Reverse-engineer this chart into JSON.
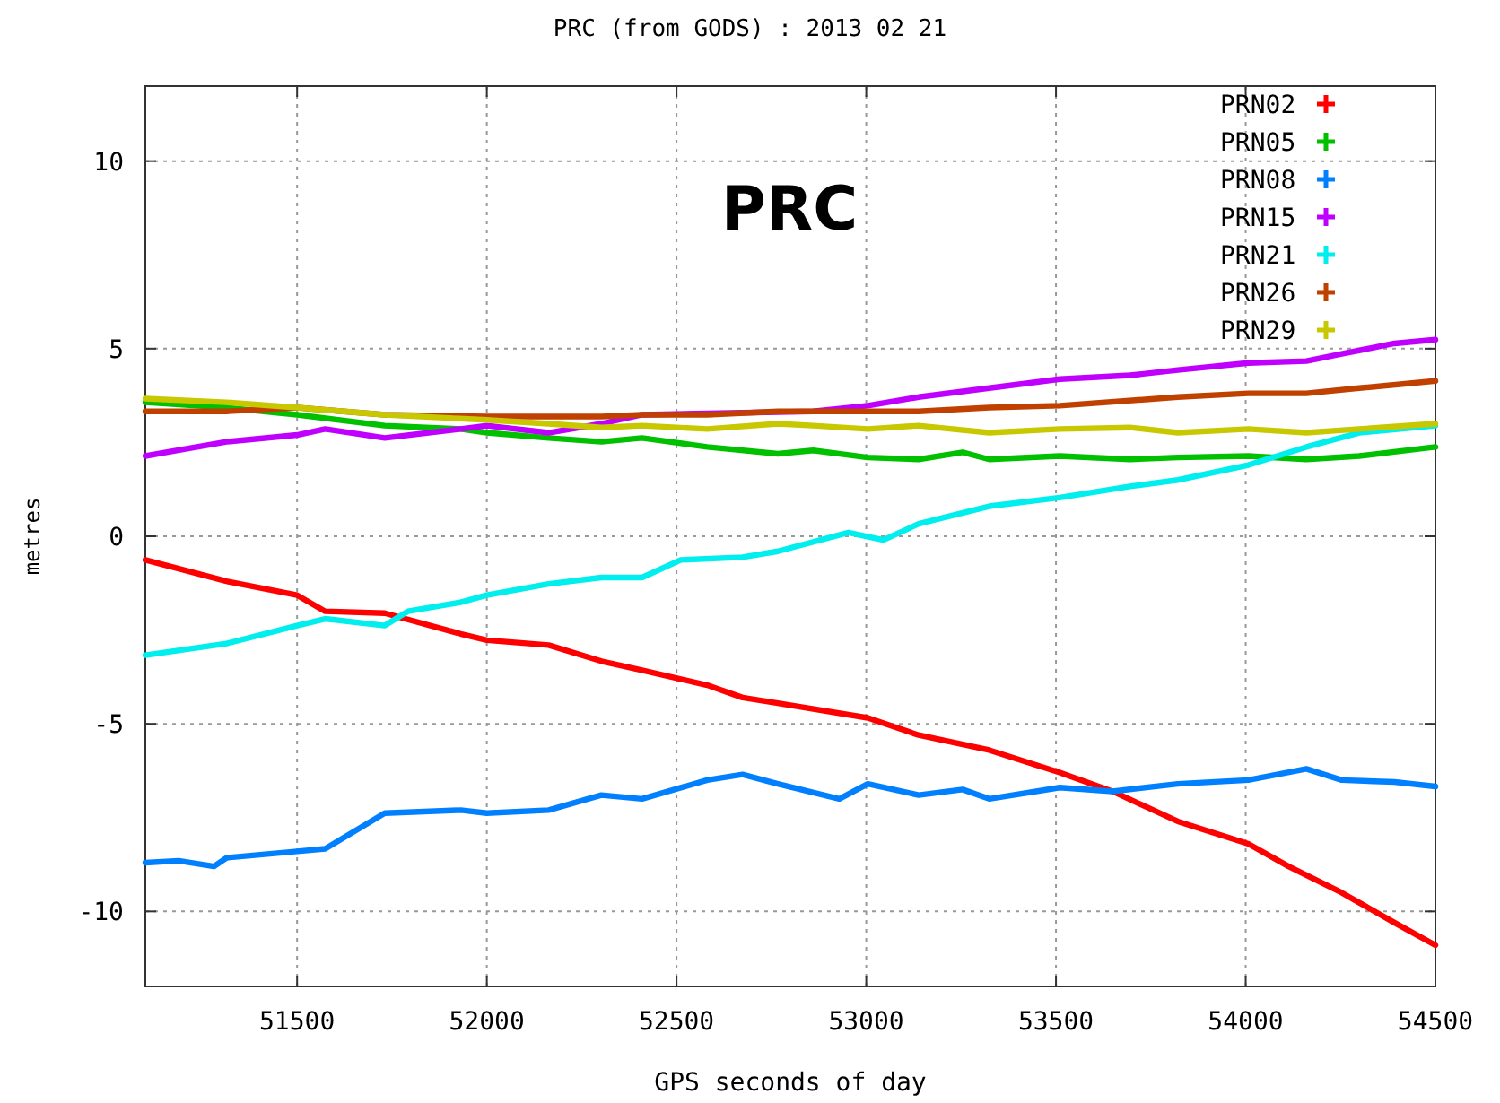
{
  "chart_data": {
    "type": "line",
    "title": "PRC (from GODS) : 2013 02 21",
    "xlabel": "GPS seconds of day",
    "ylabel": "metres",
    "annotations": [
      "PRC"
    ],
    "xlim": [
      51100,
      54500
    ],
    "xticks": [
      51500,
      52000,
      52500,
      53000,
      53500,
      54000,
      54500
    ],
    "ylim": [
      -12,
      12
    ],
    "yticks": [
      -10,
      -5,
      0,
      5,
      10
    ],
    "grid": true,
    "legend": "top right",
    "series": [
      {
        "name": "PRN02",
        "color": "#ff0000",
        "x": [
          51100,
          51314,
          51500,
          51574,
          51731,
          51931,
          52000,
          52163,
          52302,
          52409,
          52581,
          52674,
          52767,
          53004,
          53138,
          53324,
          53510,
          53649,
          53821,
          54007,
          54113,
          54253,
          54392,
          54500
        ],
        "values": [
          -0.63,
          -1.2,
          -1.57,
          -2.0,
          -2.05,
          -2.6,
          -2.77,
          -2.9,
          -3.33,
          -3.57,
          -3.97,
          -4.3,
          -4.45,
          -4.84,
          -5.3,
          -5.7,
          -6.3,
          -6.8,
          -7.6,
          -8.2,
          -8.8,
          -9.5,
          -10.3,
          -10.9
        ]
      },
      {
        "name": "PRN05",
        "color": "#00c000",
        "x": [
          51100,
          51314,
          51500,
          51731,
          51931,
          52000,
          52163,
          52302,
          52409,
          52581,
          52767,
          52860,
          53004,
          53138,
          53254,
          53324,
          53510,
          53695,
          53821,
          54007,
          54160,
          54299,
          54500
        ],
        "values": [
          3.57,
          3.43,
          3.24,
          2.95,
          2.86,
          2.76,
          2.62,
          2.52,
          2.62,
          2.38,
          2.2,
          2.29,
          2.1,
          2.05,
          2.24,
          2.05,
          2.14,
          2.05,
          2.1,
          2.14,
          2.05,
          2.14,
          2.38
        ]
      },
      {
        "name": "PRN08",
        "color": "#0080ff",
        "x": [
          51100,
          51188,
          51281,
          51314,
          51500,
          51574,
          51731,
          51931,
          52000,
          52163,
          52302,
          52409,
          52581,
          52674,
          52767,
          52929,
          53004,
          53138,
          53254,
          53324,
          53510,
          53649,
          53821,
          54007,
          54160,
          54253,
          54392,
          54500
        ],
        "values": [
          -8.7,
          -8.65,
          -8.8,
          -8.57,
          -8.4,
          -8.33,
          -7.38,
          -7.3,
          -7.38,
          -7.3,
          -6.9,
          -7.0,
          -6.5,
          -6.35,
          -6.6,
          -7.0,
          -6.6,
          -6.9,
          -6.75,
          -7.0,
          -6.7,
          -6.8,
          -6.6,
          -6.5,
          -6.2,
          -6.5,
          -6.55,
          -6.67
        ]
      },
      {
        "name": "PRN15",
        "color": "#c000ff",
        "x": [
          51100,
          51314,
          51500,
          51574,
          51731,
          51931,
          52000,
          52163,
          52302,
          52409,
          52860,
          53004,
          53138,
          53324,
          53510,
          53695,
          53821,
          54007,
          54160,
          54253,
          54392,
          54500
        ],
        "values": [
          2.14,
          2.52,
          2.7,
          2.86,
          2.62,
          2.86,
          2.95,
          2.76,
          3.0,
          3.24,
          3.33,
          3.48,
          3.71,
          3.95,
          4.19,
          4.29,
          4.43,
          4.62,
          4.67,
          4.86,
          5.14,
          5.24
        ]
      },
      {
        "name": "PRN21",
        "color": "#00eeee",
        "x": [
          51100,
          51314,
          51500,
          51574,
          51731,
          51792,
          51931,
          52000,
          52163,
          52302,
          52409,
          52511,
          52674,
          52767,
          52953,
          53045,
          53138,
          53324,
          53510,
          53695,
          53821,
          54007,
          54160,
          54299,
          54500
        ],
        "values": [
          -3.17,
          -2.86,
          -2.38,
          -2.2,
          -2.38,
          -2.0,
          -1.76,
          -1.57,
          -1.27,
          -1.1,
          -1.1,
          -0.63,
          -0.56,
          -0.4,
          0.1,
          -0.1,
          0.33,
          0.8,
          1.03,
          1.33,
          1.5,
          1.9,
          2.38,
          2.76,
          2.95
        ]
      },
      {
        "name": "PRN26",
        "color": "#c04000",
        "x": [
          51100,
          51314,
          51500,
          51731,
          52000,
          52302,
          52409,
          52581,
          52767,
          53004,
          53138,
          53324,
          53510,
          53821,
          54007,
          54160,
          54299,
          54500
        ],
        "values": [
          3.33,
          3.33,
          3.43,
          3.24,
          3.19,
          3.19,
          3.24,
          3.24,
          3.33,
          3.33,
          3.33,
          3.43,
          3.48,
          3.71,
          3.81,
          3.81,
          3.95,
          4.14
        ]
      },
      {
        "name": "PRN29",
        "color": "#c8c800",
        "x": [
          51100,
          51314,
          51500,
          51731,
          52000,
          52163,
          52302,
          52409,
          52581,
          52767,
          52860,
          53004,
          53138,
          53324,
          53510,
          53695,
          53821,
          54007,
          54160,
          54299,
          54500
        ],
        "values": [
          3.67,
          3.57,
          3.43,
          3.24,
          3.1,
          3.0,
          2.9,
          2.95,
          2.86,
          3.0,
          2.95,
          2.86,
          2.95,
          2.76,
          2.86,
          2.9,
          2.76,
          2.86,
          2.76,
          2.86,
          3.0
        ]
      }
    ]
  }
}
